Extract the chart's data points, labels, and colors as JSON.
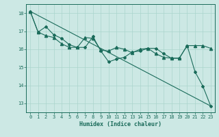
{
  "title": "",
  "xlabel": "Humidex (Indice chaleur)",
  "ylabel": "",
  "background_color": "#cce8e4",
  "grid_color": "#aad4cc",
  "line_color": "#1a6b5a",
  "xlim": [
    -0.5,
    23.5
  ],
  "ylim": [
    12.5,
    18.5
  ],
  "yticks": [
    13,
    14,
    15,
    16,
    17,
    18
  ],
  "xticks": [
    0,
    1,
    2,
    3,
    4,
    5,
    6,
    7,
    8,
    9,
    10,
    11,
    12,
    13,
    14,
    15,
    16,
    17,
    18,
    19,
    20,
    21,
    22,
    23
  ],
  "series1_x": [
    0,
    1,
    2,
    3,
    4,
    5,
    6,
    7,
    8,
    9,
    10,
    11,
    12,
    13,
    14,
    15,
    16,
    17,
    18,
    19,
    20,
    21,
    22,
    23
  ],
  "series1_y": [
    18.1,
    16.95,
    17.25,
    16.8,
    16.6,
    16.25,
    16.1,
    16.1,
    16.7,
    15.9,
    15.3,
    15.45,
    15.55,
    15.85,
    15.9,
    16.05,
    16.05,
    15.75,
    15.5,
    15.5,
    16.2,
    14.75,
    13.95,
    12.85
  ],
  "series2_x": [
    0,
    1,
    2,
    3,
    4,
    5,
    6,
    7,
    8,
    9,
    10,
    11,
    12,
    13,
    14,
    15,
    16,
    17,
    18,
    19,
    20,
    21,
    22,
    23
  ],
  "series2_y": [
    18.1,
    16.95,
    16.75,
    16.65,
    16.3,
    16.1,
    16.1,
    16.65,
    16.6,
    15.95,
    15.9,
    16.1,
    16.0,
    15.8,
    16.0,
    16.05,
    15.75,
    15.55,
    15.5,
    15.5,
    16.2,
    16.2,
    16.2,
    16.05
  ],
  "series3_x": [
    0,
    23
  ],
  "series3_y": [
    18.1,
    12.85
  ],
  "tick_fontsize": 5.0,
  "xlabel_fontsize": 6.0,
  "linewidth": 0.8,
  "marker_size_diamond": 2.0,
  "marker_size_plus": 3.0
}
